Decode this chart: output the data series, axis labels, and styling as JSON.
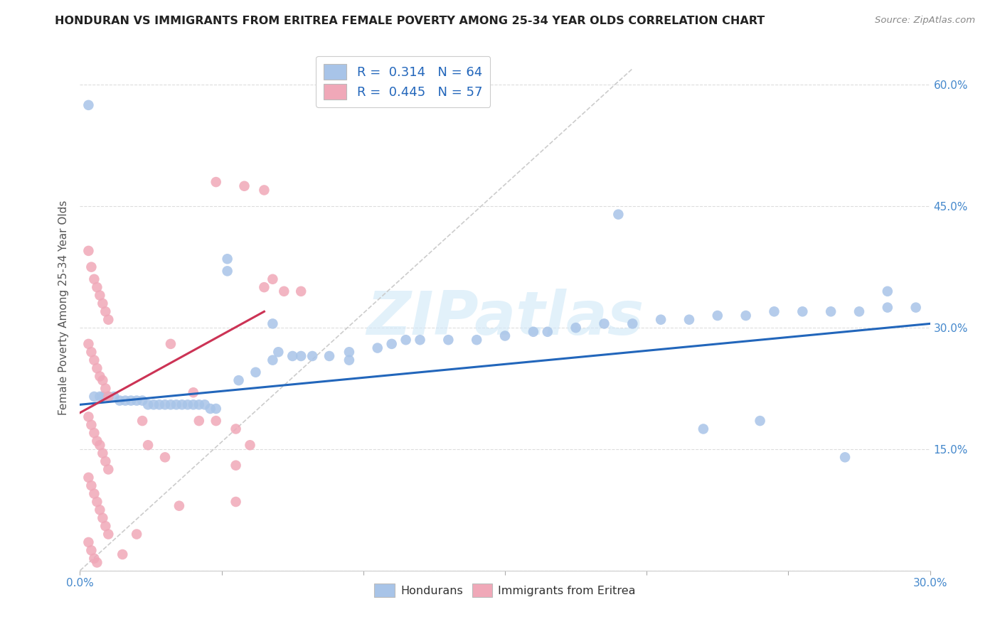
{
  "title": "HONDURAN VS IMMIGRANTS FROM ERITREA FEMALE POVERTY AMONG 25-34 YEAR OLDS CORRELATION CHART",
  "source": "Source: ZipAtlas.com",
  "ylabel": "Female Poverty Among 25-34 Year Olds",
  "xlim": [
    0.0,
    0.3
  ],
  "ylim": [
    0.0,
    0.65
  ],
  "honduran_color": "#a8c4e8",
  "eritrea_color": "#f0a8b8",
  "honduran_line_color": "#2266bb",
  "eritrea_line_color": "#cc3355",
  "diagonal_color": "#cccccc",
  "watermark": "ZIPatlas",
  "legend_R_honduran": "0.314",
  "legend_N_honduran": "64",
  "legend_R_eritrea": "0.445",
  "legend_N_eritrea": "57",
  "hon_line_x0": 0.0,
  "hon_line_y0": 0.205,
  "hon_line_x1": 0.3,
  "hon_line_y1": 0.305,
  "eri_line_x0": 0.0,
  "eri_line_y0": 0.195,
  "eri_line_x1": 0.065,
  "eri_line_y1": 0.32,
  "honduran_pts": [
    [
      0.003,
      0.575
    ],
    [
      0.052,
      0.385
    ],
    [
      0.052,
      0.37
    ],
    [
      0.068,
      0.305
    ],
    [
      0.07,
      0.27
    ],
    [
      0.075,
      0.265
    ],
    [
      0.095,
      0.26
    ],
    [
      0.005,
      0.215
    ],
    [
      0.007,
      0.215
    ],
    [
      0.008,
      0.215
    ],
    [
      0.01,
      0.215
    ],
    [
      0.012,
      0.215
    ],
    [
      0.014,
      0.21
    ],
    [
      0.016,
      0.21
    ],
    [
      0.018,
      0.21
    ],
    [
      0.02,
      0.21
    ],
    [
      0.022,
      0.21
    ],
    [
      0.024,
      0.205
    ],
    [
      0.026,
      0.205
    ],
    [
      0.028,
      0.205
    ],
    [
      0.03,
      0.205
    ],
    [
      0.032,
      0.205
    ],
    [
      0.034,
      0.205
    ],
    [
      0.036,
      0.205
    ],
    [
      0.038,
      0.205
    ],
    [
      0.04,
      0.205
    ],
    [
      0.042,
      0.205
    ],
    [
      0.044,
      0.205
    ],
    [
      0.046,
      0.2
    ],
    [
      0.048,
      0.2
    ],
    [
      0.056,
      0.235
    ],
    [
      0.062,
      0.245
    ],
    [
      0.068,
      0.26
    ],
    [
      0.078,
      0.265
    ],
    [
      0.082,
      0.265
    ],
    [
      0.088,
      0.265
    ],
    [
      0.095,
      0.27
    ],
    [
      0.105,
      0.275
    ],
    [
      0.11,
      0.28
    ],
    [
      0.115,
      0.285
    ],
    [
      0.12,
      0.285
    ],
    [
      0.13,
      0.285
    ],
    [
      0.14,
      0.285
    ],
    [
      0.15,
      0.29
    ],
    [
      0.16,
      0.295
    ],
    [
      0.165,
      0.295
    ],
    [
      0.175,
      0.3
    ],
    [
      0.185,
      0.305
    ],
    [
      0.195,
      0.305
    ],
    [
      0.205,
      0.31
    ],
    [
      0.215,
      0.31
    ],
    [
      0.225,
      0.315
    ],
    [
      0.235,
      0.315
    ],
    [
      0.245,
      0.32
    ],
    [
      0.255,
      0.32
    ],
    [
      0.265,
      0.32
    ],
    [
      0.275,
      0.32
    ],
    [
      0.285,
      0.325
    ],
    [
      0.295,
      0.325
    ],
    [
      0.19,
      0.44
    ],
    [
      0.285,
      0.345
    ],
    [
      0.24,
      0.185
    ],
    [
      0.22,
      0.175
    ],
    [
      0.27,
      0.14
    ]
  ],
  "eritrea_pts": [
    [
      0.003,
      0.395
    ],
    [
      0.004,
      0.375
    ],
    [
      0.005,
      0.36
    ],
    [
      0.006,
      0.35
    ],
    [
      0.007,
      0.34
    ],
    [
      0.008,
      0.33
    ],
    [
      0.009,
      0.32
    ],
    [
      0.01,
      0.31
    ],
    [
      0.003,
      0.28
    ],
    [
      0.004,
      0.27
    ],
    [
      0.005,
      0.26
    ],
    [
      0.006,
      0.25
    ],
    [
      0.007,
      0.24
    ],
    [
      0.008,
      0.235
    ],
    [
      0.009,
      0.225
    ],
    [
      0.01,
      0.215
    ],
    [
      0.003,
      0.19
    ],
    [
      0.004,
      0.18
    ],
    [
      0.005,
      0.17
    ],
    [
      0.006,
      0.16
    ],
    [
      0.007,
      0.155
    ],
    [
      0.008,
      0.145
    ],
    [
      0.009,
      0.135
    ],
    [
      0.01,
      0.125
    ],
    [
      0.003,
      0.115
    ],
    [
      0.004,
      0.105
    ],
    [
      0.005,
      0.095
    ],
    [
      0.006,
      0.085
    ],
    [
      0.007,
      0.075
    ],
    [
      0.008,
      0.065
    ],
    [
      0.009,
      0.055
    ],
    [
      0.01,
      0.045
    ],
    [
      0.003,
      0.035
    ],
    [
      0.004,
      0.025
    ],
    [
      0.005,
      0.015
    ],
    [
      0.006,
      0.01
    ],
    [
      0.042,
      0.185
    ],
    [
      0.048,
      0.185
    ],
    [
      0.055,
      0.175
    ],
    [
      0.055,
      0.085
    ],
    [
      0.055,
      0.13
    ],
    [
      0.06,
      0.155
    ],
    [
      0.065,
      0.35
    ],
    [
      0.068,
      0.36
    ],
    [
      0.072,
      0.345
    ],
    [
      0.078,
      0.345
    ],
    [
      0.048,
      0.48
    ],
    [
      0.058,
      0.475
    ],
    [
      0.065,
      0.47
    ],
    [
      0.024,
      0.155
    ],
    [
      0.03,
      0.14
    ],
    [
      0.035,
      0.08
    ],
    [
      0.02,
      0.045
    ],
    [
      0.015,
      0.02
    ],
    [
      0.032,
      0.28
    ],
    [
      0.04,
      0.22
    ],
    [
      0.022,
      0.185
    ]
  ]
}
